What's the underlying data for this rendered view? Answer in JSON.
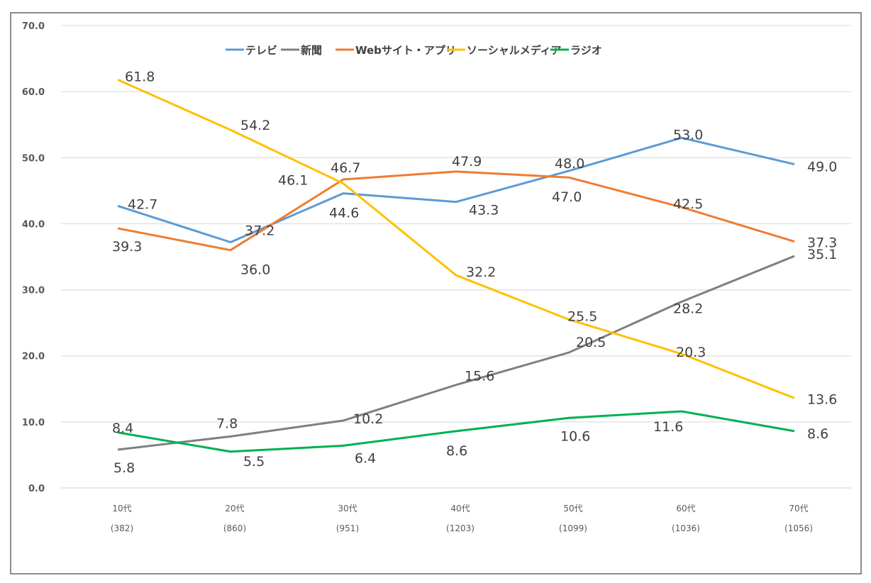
{
  "chart_data": {
    "type": "line",
    "title": "",
    "xlabel": "",
    "ylabel": "",
    "ylim": [
      0,
      70
    ],
    "yticks": [
      "0.0",
      "10.0",
      "20.0",
      "30.0",
      "40.0",
      "50.0",
      "60.0",
      "70.0"
    ],
    "ytick_values": [
      0,
      10,
      20,
      30,
      40,
      50,
      60,
      70
    ],
    "grid": true,
    "legend_position": "top",
    "categories": [
      "10代",
      "20代",
      "30代",
      "40代",
      "50代",
      "60代",
      "70代"
    ],
    "category_counts": [
      "(382)",
      "(860)",
      "(951)",
      "(1203)",
      "(1099)",
      "(1036)",
      "(1056)"
    ],
    "series": [
      {
        "name": "テレビ",
        "color": "#5b9bd5",
        "values": [
          42.7,
          37.2,
          44.6,
          43.3,
          48.0,
          53.0,
          49.0
        ]
      },
      {
        "name": "新聞",
        "color": "#7f7f7f",
        "values": [
          5.8,
          7.8,
          10.2,
          15.6,
          20.5,
          28.2,
          35.1
        ]
      },
      {
        "name": "Webサイト・アプリ",
        "color": "#ed7d31",
        "values": [
          39.3,
          36.0,
          46.7,
          47.9,
          47.0,
          42.5,
          37.3
        ]
      },
      {
        "name": "ソーシャルメディア",
        "color": "#ffc000",
        "values": [
          61.8,
          54.2,
          46.1,
          32.2,
          25.5,
          20.3,
          13.6
        ]
      },
      {
        "name": "ラジオ",
        "color": "#00b050",
        "values": [
          8.4,
          5.5,
          6.4,
          8.6,
          10.6,
          11.6,
          8.6
        ]
      }
    ],
    "data_label_format": "0.0"
  }
}
